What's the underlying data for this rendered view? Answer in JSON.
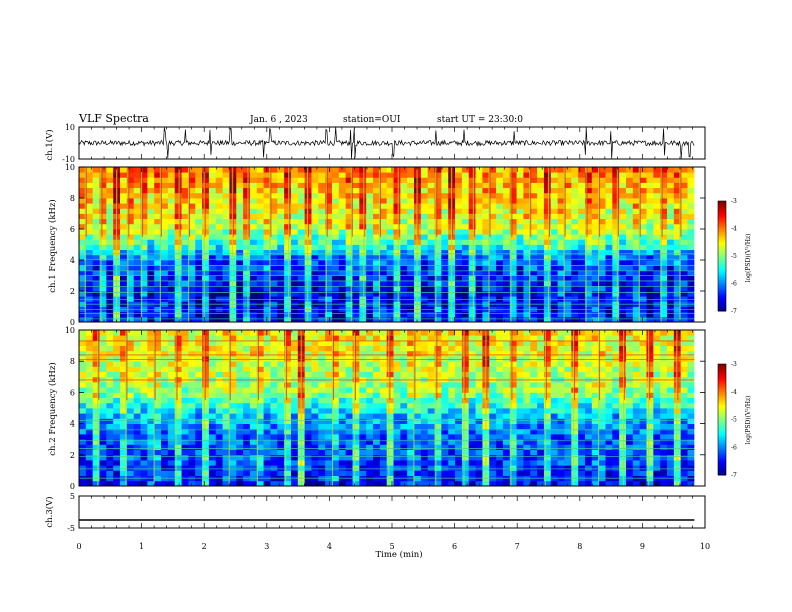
{
  "header": {
    "title": "VLF Spectra",
    "date": "Jan. 6 , 2023",
    "station": "station=OUI",
    "start_ut": "start UT = 23:30:0"
  },
  "chart_data": [
    {
      "type": "line",
      "name": "ch1-waveform",
      "ylabel": "ch.1(V)",
      "ylim": [
        -10,
        10
      ],
      "yticks": [
        "10",
        "-10"
      ],
      "xlim": [
        0,
        10
      ],
      "baseline": 0,
      "spikes_approx_min": [
        1.37,
        1.42,
        1.7,
        2.1,
        2.42,
        2.95,
        3.05,
        3.95,
        4.1,
        4.35,
        4.4,
        5.02,
        5.7,
        6.15,
        6.95,
        8.1,
        8.5,
        9.35,
        9.62,
        9.75
      ],
      "color": "#000000"
    },
    {
      "type": "heatmap",
      "name": "ch1-spectrogram",
      "ylabel": "ch.1 Frequency (kHz)",
      "ylim": [
        0,
        10
      ],
      "yticks": [
        "0",
        "2",
        "4",
        "6",
        "8",
        "10"
      ],
      "xlim": [
        0,
        10
      ],
      "data_end_min": 9.83,
      "colorbar": {
        "label": "log(PSD)(V²/Hz)",
        "range": [
          -7,
          -3
        ],
        "ticks": [
          "-3",
          "-4",
          "-5",
          "-6",
          "-7"
        ]
      },
      "profile_log_psd": [
        {
          "khz": 0,
          "v": -6.6
        },
        {
          "khz": 2,
          "v": -6.7
        },
        {
          "khz": 4,
          "v": -6.3
        },
        {
          "khz": 4.8,
          "v": -5.6
        },
        {
          "khz": 6,
          "v": -4.9
        },
        {
          "khz": 8,
          "v": -4.5
        },
        {
          "khz": 10,
          "v": -4.2
        }
      ],
      "line_khz": [
        0.2,
        0.55,
        0.8,
        1.15,
        1.45,
        1.9,
        2.3,
        2.65,
        3.0,
        3.3,
        3.65,
        4.05,
        4.4
      ],
      "burst_min": [
        0.1,
        0.35,
        0.6,
        0.78,
        1.0,
        1.3,
        1.6,
        1.75,
        2.0,
        2.45,
        2.7,
        3.05,
        3.35,
        3.65,
        3.95,
        4.35,
        4.55,
        4.8,
        5.1,
        5.4,
        5.7,
        5.95,
        6.3,
        6.55,
        6.9,
        7.2,
        7.5,
        7.75,
        8.1,
        8.3,
        8.6,
        8.95,
        9.3,
        9.6
      ]
    },
    {
      "type": "heatmap",
      "name": "ch2-spectrogram",
      "ylabel": "ch.2 Frequency (kHz)",
      "ylim": [
        0,
        10
      ],
      "yticks": [
        "0",
        "2",
        "4",
        "6",
        "8",
        "10"
      ],
      "xlim": [
        0,
        10
      ],
      "data_end_min": 9.83,
      "colorbar": {
        "label": "log(PSD)(V²/Hz)",
        "range": [
          -7,
          -3
        ],
        "ticks": [
          "-3",
          "-4",
          "-5",
          "-6",
          "-7"
        ]
      },
      "profile_log_psd": [
        {
          "khz": 0,
          "v": -6.6
        },
        {
          "khz": 1.5,
          "v": -6.3
        },
        {
          "khz": 3,
          "v": -6.2
        },
        {
          "khz": 4.5,
          "v": -5.8
        },
        {
          "khz": 6,
          "v": -5.0
        },
        {
          "khz": 8,
          "v": -4.7
        },
        {
          "khz": 10,
          "v": -4.5
        }
      ],
      "line_khz": [
        0.5,
        1.1,
        1.9,
        2.4,
        2.9,
        3.6,
        4.2,
        6.8,
        8.1,
        8.4,
        9.3
      ],
      "burst_min": [
        0.3,
        0.75,
        1.2,
        1.55,
        2.0,
        2.4,
        2.85,
        3.3,
        3.55,
        4.05,
        4.4,
        4.95,
        5.35,
        5.7,
        6.15,
        6.5,
        6.9,
        7.45,
        7.9,
        8.3,
        8.7,
        9.1,
        9.55
      ]
    },
    {
      "type": "line",
      "name": "ch3-waveform",
      "ylabel": "ch.3(V)",
      "ylim": [
        -5,
        5
      ],
      "yticks": [
        "5",
        "-5"
      ],
      "xlim": [
        0,
        10
      ],
      "constant_value": -2.5,
      "color": "#000000"
    }
  ],
  "x_axis": {
    "label": "Time (min)",
    "ticks": [
      "0",
      "1",
      "2",
      "3",
      "4",
      "5",
      "6",
      "7",
      "8",
      "9",
      "10"
    ]
  }
}
